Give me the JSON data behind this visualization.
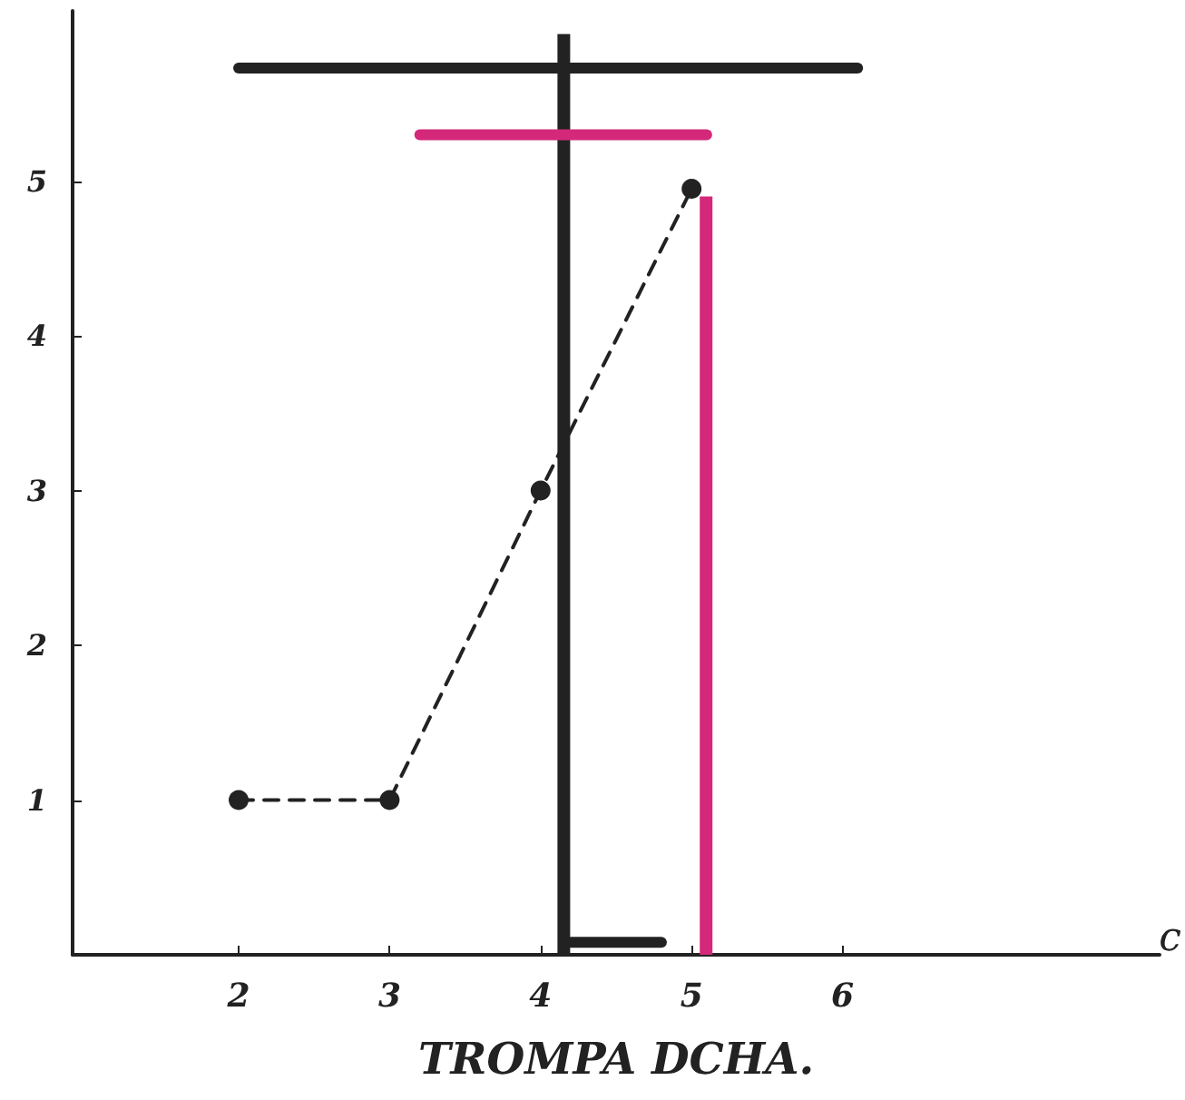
{
  "chart_data": {
    "type": "line",
    "xlabel": "TROMPA DCHA.",
    "annotations": [
      "c"
    ],
    "xlim": [
      0.9,
      8.1
    ],
    "xticks": [
      2,
      3,
      4,
      5,
      6
    ],
    "ylim": [
      0,
      6.1
    ],
    "yticks": [
      1,
      2,
      3,
      4,
      5
    ],
    "grid": false,
    "series": [
      {
        "color": "#222222",
        "x": [
          2,
          3,
          4,
          5
        ],
        "values": [
          1,
          1,
          3,
          4.95
        ],
        "marker": "circle",
        "line_style": "dashed"
      },
      {
        "type": "bar",
        "color": "#222222",
        "x": [
          4.2
        ],
        "values": [
          5.95
        ]
      },
      {
        "type": "bar",
        "color": "#d4287a",
        "x": [
          5.05
        ],
        "values": [
          4.9
        ]
      },
      {
        "type": "line",
        "color": "#222222",
        "x": [
          2.0,
          6.1
        ],
        "values": [
          5.73,
          5.73
        ],
        "marker": "none",
        "line_style": "solid"
      },
      {
        "type": "line",
        "color": "#d4287a",
        "x": [
          3.2,
          5.1
        ],
        "values": [
          5.3,
          5.3
        ],
        "marker": "none",
        "line_style": "solid"
      },
      {
        "type": "line",
        "color": "#222222",
        "x": [
          4.2,
          4.8
        ],
        "values": [
          0.08,
          0.08
        ],
        "marker": "none",
        "line_style": "solid"
      }
    ]
  }
}
